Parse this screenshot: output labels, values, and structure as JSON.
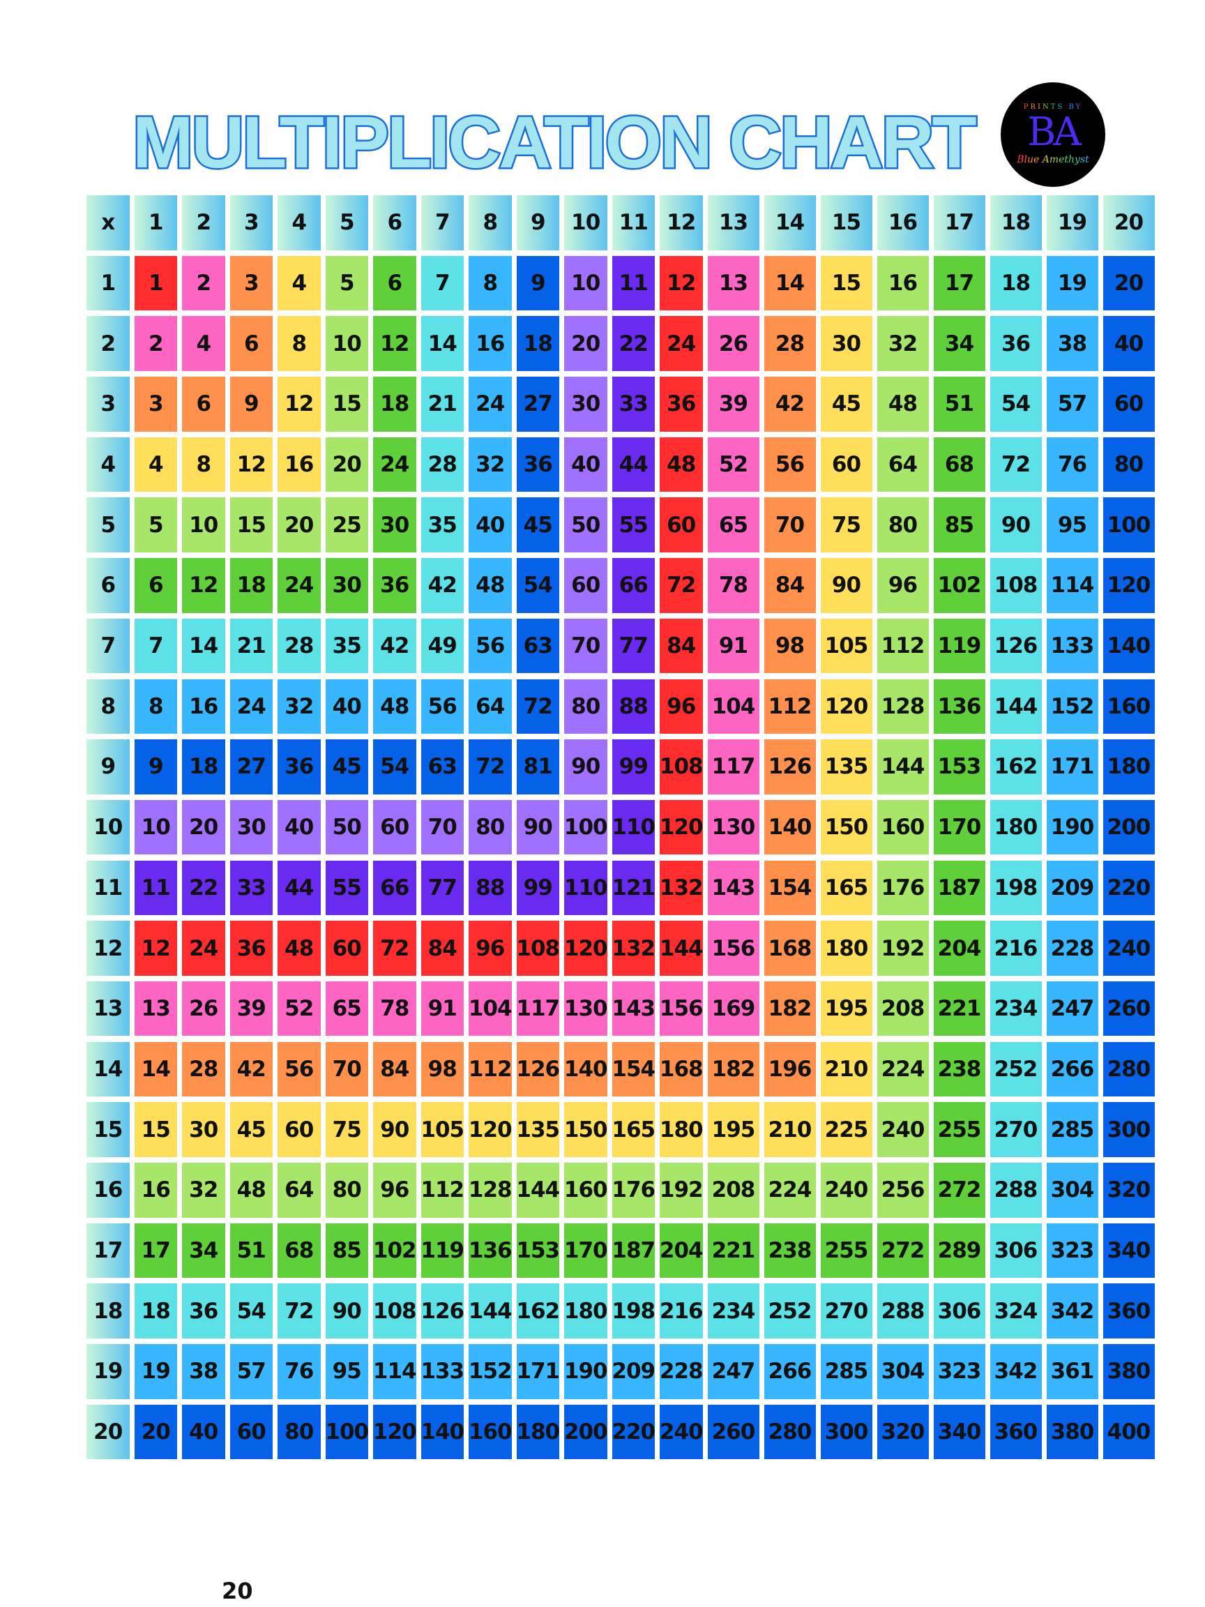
{
  "title": "MULTIPLICATION CHART",
  "logo": {
    "top_text": "PRINTS BY",
    "monogram": "BA",
    "script_text": "Blue Amethyst"
  },
  "corner_label": "x",
  "palette": [
    "#ff2d2d",
    "#ff66c4",
    "#ff914d",
    "#ffde59",
    "#a8e66a",
    "#5fd03a",
    "#5ce1e6",
    "#38b6ff",
    "#0562e8",
    "#a070ff",
    "#6a2bf0",
    "#ff2d2d",
    "#ff66c4",
    "#ff914d",
    "#ffde59",
    "#a8e66a",
    "#5fd03a",
    "#5ce1e6",
    "#38b6ff",
    "#0562e8"
  ],
  "headers": [
    1,
    2,
    3,
    4,
    5,
    6,
    7,
    8,
    9,
    10,
    11,
    12,
    13,
    14,
    15,
    16,
    17,
    18,
    19,
    20
  ],
  "rows": [
    [
      1,
      2,
      3,
      4,
      5,
      6,
      7,
      8,
      9,
      10,
      11,
      12,
      13,
      14,
      15,
      16,
      17,
      18,
      19,
      20
    ],
    [
      2,
      4,
      6,
      8,
      10,
      12,
      14,
      16,
      18,
      20,
      22,
      24,
      26,
      28,
      30,
      32,
      34,
      36,
      38,
      40
    ],
    [
      3,
      6,
      9,
      12,
      15,
      18,
      21,
      24,
      27,
      30,
      33,
      36,
      39,
      42,
      45,
      48,
      51,
      54,
      57,
      60
    ],
    [
      4,
      8,
      12,
      16,
      20,
      24,
      28,
      32,
      36,
      40,
      44,
      48,
      52,
      56,
      60,
      64,
      68,
      72,
      76,
      80
    ],
    [
      5,
      10,
      15,
      20,
      25,
      30,
      35,
      40,
      45,
      50,
      55,
      60,
      65,
      70,
      75,
      80,
      85,
      90,
      95,
      100
    ],
    [
      6,
      12,
      18,
      24,
      30,
      36,
      42,
      48,
      54,
      60,
      66,
      72,
      78,
      84,
      90,
      96,
      102,
      108,
      114,
      120
    ],
    [
      7,
      14,
      21,
      28,
      35,
      42,
      49,
      56,
      63,
      70,
      77,
      84,
      91,
      98,
      105,
      112,
      119,
      126,
      133,
      140
    ],
    [
      8,
      16,
      24,
      32,
      40,
      48,
      56,
      64,
      72,
      80,
      88,
      96,
      104,
      112,
      120,
      128,
      136,
      144,
      152,
      160
    ],
    [
      9,
      18,
      27,
      36,
      45,
      54,
      63,
      72,
      81,
      90,
      99,
      108,
      117,
      126,
      135,
      144,
      153,
      162,
      171,
      180
    ],
    [
      10,
      20,
      30,
      40,
      50,
      60,
      70,
      80,
      90,
      100,
      110,
      120,
      130,
      140,
      150,
      160,
      170,
      180,
      190,
      200
    ],
    [
      11,
      22,
      33,
      44,
      55,
      66,
      77,
      88,
      99,
      110,
      121,
      132,
      143,
      154,
      165,
      176,
      187,
      198,
      209,
      220
    ],
    [
      12,
      24,
      36,
      48,
      60,
      72,
      84,
      96,
      108,
      120,
      132,
      144,
      156,
      168,
      180,
      192,
      204,
      216,
      228,
      240
    ],
    [
      13,
      26,
      39,
      52,
      65,
      78,
      91,
      104,
      117,
      130,
      143,
      156,
      169,
      182,
      195,
      208,
      221,
      234,
      247,
      260
    ],
    [
      14,
      28,
      42,
      56,
      70,
      84,
      98,
      112,
      126,
      140,
      154,
      168,
      182,
      196,
      210,
      224,
      238,
      252,
      266,
      280
    ],
    [
      15,
      30,
      45,
      60,
      75,
      90,
      105,
      120,
      135,
      150,
      165,
      180,
      195,
      210,
      225,
      240,
      255,
      270,
      285,
      300
    ],
    [
      16,
      32,
      48,
      64,
      80,
      96,
      112,
      128,
      144,
      160,
      176,
      192,
      208,
      224,
      240,
      256,
      272,
      288,
      304,
      320
    ],
    [
      17,
      34,
      51,
      68,
      85,
      102,
      119,
      136,
      153,
      170,
      187,
      204,
      221,
      238,
      255,
      272,
      289,
      306,
      323,
      340
    ],
    [
      18,
      36,
      54,
      72,
      90,
      108,
      126,
      144,
      162,
      180,
      198,
      216,
      234,
      252,
      270,
      288,
      306,
      324,
      342,
      360
    ],
    [
      19,
      38,
      57,
      76,
      95,
      114,
      133,
      152,
      171,
      190,
      209,
      228,
      247,
      266,
      285,
      304,
      323,
      342,
      361,
      380
    ],
    [
      20,
      40,
      60,
      80,
      100,
      120,
      140,
      160,
      180,
      200,
      220,
      240,
      260,
      280,
      300,
      320,
      340,
      360,
      380,
      400
    ]
  ],
  "page_number": "20"
}
